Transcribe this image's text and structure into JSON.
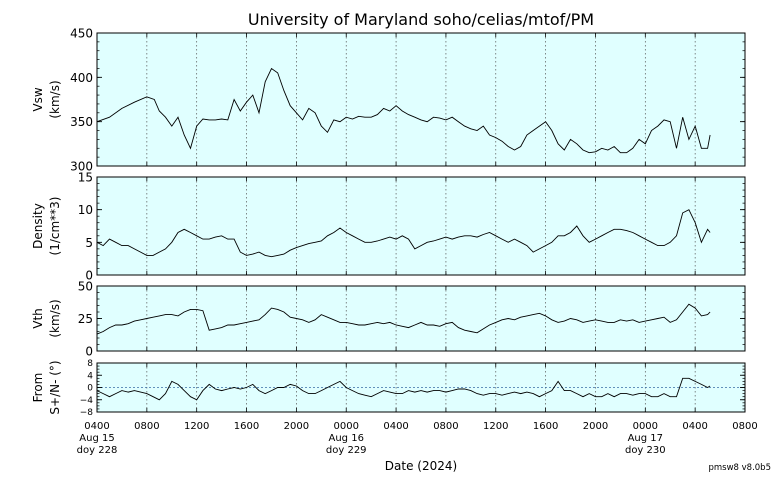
{
  "title": "University of Maryland  soho/celias/mtof/PM",
  "xlabel": "Date (2024)",
  "version": "pmsw8 v8.0b5",
  "colors": {
    "panel_bg": "#e0ffff",
    "line": "#000000",
    "grid": "#555555",
    "zero_line": "#3a6ea5"
  },
  "x_axis": {
    "range_hours": [
      0,
      52
    ],
    "ticks": [
      {
        "hour": 0,
        "label": "0400",
        "date": "Aug 15",
        "doy": "doy 228"
      },
      {
        "hour": 4,
        "label": "0800"
      },
      {
        "hour": 8,
        "label": "1200"
      },
      {
        "hour": 12,
        "label": "1600"
      },
      {
        "hour": 16,
        "label": "2000"
      },
      {
        "hour": 20,
        "label": "0000",
        "date": "Aug 16",
        "doy": "doy 229"
      },
      {
        "hour": 24,
        "label": "0400"
      },
      {
        "hour": 28,
        "label": "0800"
      },
      {
        "hour": 32,
        "label": "1200"
      },
      {
        "hour": 36,
        "label": "1600"
      },
      {
        "hour": 40,
        "label": "2000"
      },
      {
        "hour": 44,
        "label": "0000",
        "date": "Aug 17",
        "doy": "doy 230"
      },
      {
        "hour": 48,
        "label": "0400"
      },
      {
        "hour": 52,
        "label": "0800"
      }
    ]
  },
  "chart_data": [
    {
      "type": "line",
      "panel": "vsw",
      "ylabel": [
        "Vsw",
        "(km/s)"
      ],
      "ylim": [
        300,
        450
      ],
      "yticks": [
        300,
        350,
        400,
        450
      ],
      "grid": "vertical dotted",
      "x": [
        0,
        1,
        2,
        3,
        4,
        4.6,
        5,
        5.5,
        6,
        6.5,
        7,
        7.5,
        8,
        8.5,
        9,
        9.5,
        10,
        10.5,
        11,
        11.5,
        12,
        12.5,
        13,
        13.5,
        14,
        14.5,
        15,
        15.5,
        16,
        16.5,
        17,
        17.5,
        18,
        18.5,
        19,
        19.5,
        20,
        20.5,
        21,
        21.5,
        22,
        22.5,
        23,
        23.5,
        24,
        24.5,
        25,
        25.5,
        26,
        26.5,
        27,
        27.5,
        28,
        28.5,
        29,
        29.5,
        30,
        30.5,
        31,
        31.5,
        32,
        32.5,
        33,
        33.5,
        34,
        34.5,
        35,
        35.5,
        36,
        36.5,
        37,
        37.5,
        38,
        38.5,
        39,
        39.5,
        40,
        40.5,
        41,
        41.5,
        42,
        42.5,
        43,
        43.5,
        44,
        44.5,
        45,
        45.5,
        46,
        46.5,
        47,
        47.5,
        48,
        48.5,
        49,
        49.2
      ],
      "y": [
        350,
        355,
        365,
        372,
        378,
        375,
        362,
        355,
        345,
        355,
        335,
        320,
        345,
        353,
        352,
        352,
        353,
        352,
        375,
        362,
        372,
        380,
        360,
        395,
        410,
        405,
        385,
        368,
        360,
        352,
        365,
        360,
        345,
        338,
        352,
        350,
        355,
        353,
        356,
        355,
        355,
        358,
        365,
        362,
        368,
        362,
        358,
        355,
        352,
        350,
        355,
        354,
        352,
        355,
        350,
        345,
        342,
        340,
        345,
        335,
        332,
        328,
        322,
        318,
        322,
        335,
        340,
        345,
        350,
        340,
        325,
        318,
        330,
        325,
        318,
        315,
        316,
        320,
        318,
        322,
        315,
        315,
        320,
        330,
        325,
        340,
        345,
        352,
        350,
        320,
        355,
        330,
        345,
        320,
        320,
        335
      ]
    },
    {
      "type": "line",
      "panel": "density",
      "ylabel": [
        "Density",
        "(1/cm**3)"
      ],
      "ylim": [
        0,
        15
      ],
      "yticks": [
        0,
        5,
        10,
        15
      ],
      "grid": "vertical dotted",
      "x": [
        0,
        0.5,
        1,
        1.5,
        2,
        2.5,
        3,
        3.5,
        4,
        4.5,
        5,
        5.5,
        6,
        6.5,
        7,
        7.5,
        8,
        8.5,
        9,
        9.5,
        10,
        10.5,
        11,
        11.5,
        12,
        12.5,
        13,
        13.5,
        14,
        14.5,
        15,
        15.5,
        16,
        16.5,
        17,
        17.5,
        18,
        18.5,
        19,
        19.5,
        20,
        20.5,
        21,
        21.5,
        22,
        22.5,
        23,
        23.5,
        24,
        24.5,
        25,
        25.5,
        26,
        26.5,
        27,
        27.5,
        28,
        28.5,
        29,
        29.5,
        30,
        30.5,
        31,
        31.5,
        32,
        32.5,
        33,
        33.5,
        34,
        34.5,
        35,
        35.5,
        36,
        36.5,
        37,
        37.5,
        38,
        38.5,
        39,
        39.5,
        40,
        40.5,
        41,
        41.5,
        42,
        42.5,
        43,
        43.5,
        44,
        44.5,
        45,
        45.5,
        46,
        46.5,
        47,
        47.5,
        48,
        48.5,
        49,
        49.2
      ],
      "y": [
        5,
        4.5,
        5.5,
        5,
        4.5,
        4.5,
        4,
        3.5,
        3,
        3,
        3.5,
        4,
        5,
        6.5,
        7,
        6.5,
        6,
        5.5,
        5.5,
        5.8,
        6,
        5.5,
        5.5,
        3.5,
        3,
        3.2,
        3.5,
        3,
        2.8,
        3,
        3.2,
        3.8,
        4.2,
        4.5,
        4.8,
        5,
        5.2,
        6,
        6.5,
        7.2,
        6.5,
        6,
        5.5,
        5,
        5,
        5.2,
        5.5,
        5.8,
        5.5,
        6,
        5.5,
        4,
        4.5,
        5,
        5.2,
        5.5,
        5.8,
        5.5,
        5.8,
        6,
        6,
        5.8,
        6.2,
        6.5,
        6,
        5.5,
        5,
        5.5,
        5,
        4.5,
        3.5,
        4,
        4.5,
        5,
        6,
        6,
        6.5,
        7.5,
        6,
        5,
        5.5,
        6,
        6.5,
        7,
        7,
        6.8,
        6.5,
        6,
        5.5,
        5,
        4.5,
        4.5,
        5,
        6,
        9.5,
        10,
        8,
        5,
        7,
        6.5
      ]
    },
    {
      "type": "line",
      "panel": "vth",
      "ylabel": [
        "Vth",
        "(km/s)"
      ],
      "ylim": [
        0,
        50
      ],
      "yticks": [
        0,
        25,
        50
      ],
      "grid": "vertical dotted",
      "x": [
        0,
        0.5,
        1,
        1.5,
        2,
        2.5,
        3,
        3.5,
        4,
        4.5,
        5,
        5.5,
        6,
        6.5,
        7,
        7.5,
        8,
        8.5,
        9,
        9.5,
        10,
        10.5,
        11,
        11.5,
        12,
        12.5,
        13,
        13.5,
        14,
        14.5,
        15,
        15.5,
        16,
        16.5,
        17,
        17.5,
        18,
        18.5,
        19,
        19.5,
        20,
        20.5,
        21,
        21.5,
        22,
        22.5,
        23,
        23.5,
        24,
        24.5,
        25,
        25.5,
        26,
        26.5,
        27,
        27.5,
        28,
        28.5,
        29,
        29.5,
        30,
        30.5,
        31,
        31.5,
        32,
        32.5,
        33,
        33.5,
        34,
        34.5,
        35,
        35.5,
        36,
        36.5,
        37,
        37.5,
        38,
        38.5,
        39,
        39.5,
        40,
        40.5,
        41,
        41.5,
        42,
        42.5,
        43,
        43.5,
        44,
        44.5,
        45,
        45.5,
        46,
        46.5,
        47,
        47.5,
        48,
        48.5,
        49,
        49.2
      ],
      "y": [
        13,
        15,
        18,
        20,
        20,
        21,
        23,
        24,
        25,
        26,
        27,
        28,
        28,
        27,
        30,
        32,
        32,
        31,
        16,
        17,
        18,
        20,
        20,
        21,
        22,
        23,
        24,
        28,
        33,
        32,
        30,
        26,
        25,
        24,
        22,
        24,
        28,
        26,
        24,
        22,
        22,
        21,
        20,
        20,
        21,
        22,
        21,
        22,
        20,
        19,
        18,
        20,
        22,
        20,
        20,
        19,
        21,
        22,
        18,
        16,
        15,
        14,
        17,
        20,
        22,
        24,
        25,
        24,
        26,
        27,
        28,
        29,
        27,
        24,
        22,
        23,
        25,
        24,
        22,
        23,
        24,
        23,
        22,
        22,
        24,
        23,
        24,
        22,
        23,
        24,
        25,
        26,
        22,
        24,
        30,
        36,
        33,
        27,
        28,
        30
      ]
    },
    {
      "type": "line",
      "panel": "from",
      "ylabel": [
        "From",
        "S+/N- (°)"
      ],
      "ylim": [
        -8,
        8
      ],
      "yticks": [
        -8,
        -4,
        0,
        4,
        8
      ],
      "ytick_labels": [
        "−8",
        "−4",
        "0",
        "4",
        "8"
      ],
      "reference_line": 0,
      "grid": "vertical dotted",
      "x": [
        0,
        0.5,
        1,
        1.5,
        2,
        2.5,
        3,
        3.5,
        4,
        4.5,
        5,
        5.5,
        6,
        6.5,
        7,
        7.5,
        8,
        8.5,
        9,
        9.5,
        10,
        10.5,
        11,
        11.5,
        12,
        12.5,
        13,
        13.5,
        14,
        14.5,
        15,
        15.5,
        16,
        16.5,
        17,
        17.5,
        18,
        18.5,
        19,
        19.5,
        20,
        20.5,
        21,
        21.5,
        22,
        22.5,
        23,
        23.5,
        24,
        24.5,
        25,
        25.5,
        26,
        26.5,
        27,
        27.5,
        28,
        28.5,
        29,
        29.5,
        30,
        30.5,
        31,
        31.5,
        32,
        32.5,
        33,
        33.5,
        34,
        34.5,
        35,
        35.5,
        36,
        36.5,
        37,
        37.5,
        38,
        38.5,
        39,
        39.5,
        40,
        40.5,
        41,
        41.5,
        42,
        42.5,
        43,
        43.5,
        44,
        44.5,
        45,
        45.5,
        46,
        46.5,
        47,
        47.5,
        48,
        48.5,
        49,
        49.2
      ],
      "y": [
        -1,
        -2,
        -3,
        -2,
        -1,
        -1.5,
        -1,
        -1.5,
        -2,
        -3,
        -4,
        -2,
        2,
        1,
        -1,
        -3,
        -4,
        -1,
        1,
        -0.5,
        -1,
        -0.5,
        0,
        -0.5,
        0,
        1,
        -1,
        -2,
        -1,
        0,
        0,
        1,
        0.5,
        -1,
        -2,
        -2,
        -1,
        0,
        1,
        2,
        0,
        -1,
        -2,
        -2.5,
        -3,
        -2,
        -1,
        -1.5,
        -2,
        -2,
        -1,
        -1.5,
        -1,
        -1.5,
        -1,
        -1,
        -1.5,
        -1,
        -0.5,
        -0.5,
        -1,
        -2,
        -2.5,
        -2,
        -2,
        -2.5,
        -2,
        -1.5,
        -2,
        -1.5,
        -2,
        -3,
        -2,
        -1,
        2,
        -1,
        -1,
        -2,
        -3,
        -2,
        -3,
        -3,
        -2,
        -3,
        -2,
        -2,
        -2.5,
        -2,
        -2,
        -3,
        -3,
        -2,
        -3,
        -3,
        3,
        3,
        2,
        1,
        0,
        0.5
      ]
    }
  ]
}
